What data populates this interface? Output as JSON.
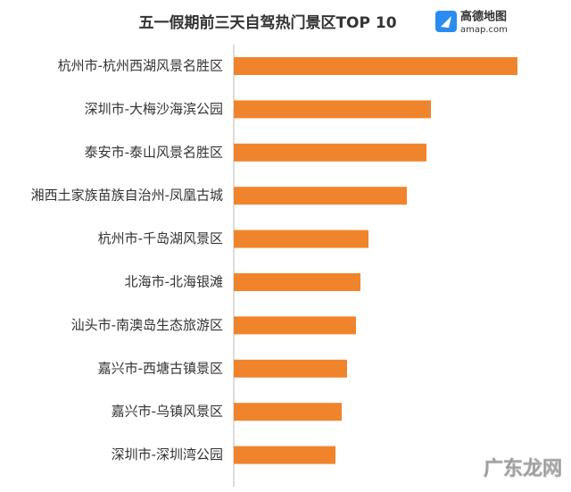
{
  "chart_data": {
    "type": "barh",
    "title": "五一假期前三天自驾热门景区TOP 10",
    "logo": {
      "name": "高德地图",
      "site": "amap.com"
    },
    "watermark": "广东龙网",
    "categories": [
      "杭州市-杭州西湖风景名胜区",
      "深圳市-大梅沙海滨公园",
      "泰安市-泰山风景名胜区",
      "湘西土家族苗族自治州-凤凰古城",
      "杭州市-千岛湖风景区",
      "北海市-北海银滩",
      "汕头市-南澳岛生态旅游区",
      "嘉兴市-西塘古镇景区",
      "嘉兴市-乌镇风景区",
      "深圳市-深圳湾公园"
    ],
    "values": [
      318,
      221,
      216,
      194,
      151,
      142,
      137,
      127,
      121,
      114
    ],
    "color": "#f0842c",
    "xlim": [
      0,
      318
    ]
  }
}
